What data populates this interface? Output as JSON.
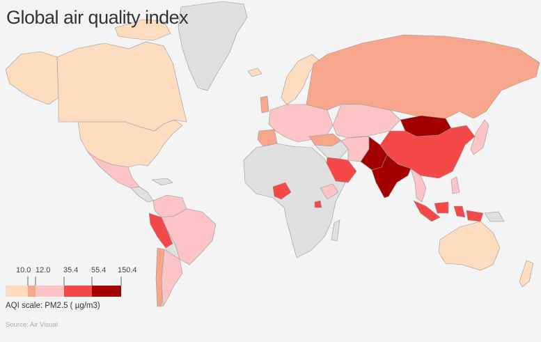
{
  "title": "Global air quality index",
  "legend": {
    "scale_label": "AQI scale: PM2.5 ( µg/m3)",
    "ticks": [
      "10.0",
      "12.0",
      "35.4",
      "55.4",
      "150.4"
    ],
    "bins": [
      {
        "color": "#fddcc0"
      },
      {
        "color": "#f7a58b"
      },
      {
        "color": "#fcc4c4"
      },
      {
        "color": "#f54848"
      },
      {
        "color": "#a30000"
      }
    ]
  },
  "source": "Source: Air Visual",
  "colors": {
    "no_data": "#e0e0e0",
    "ocean": "#f4f4f4",
    "border": "#888888"
  },
  "countries": [
    {
      "name": "Canada",
      "bin": 0
    },
    {
      "name": "United States",
      "bin": 0
    },
    {
      "name": "Mexico",
      "bin": 2
    },
    {
      "name": "Peru",
      "bin": 3
    },
    {
      "name": "Brazil",
      "bin": 2
    },
    {
      "name": "Chile",
      "bin": 2
    },
    {
      "name": "Argentina",
      "bin": 2
    },
    {
      "name": "Russia",
      "bin": 1
    },
    {
      "name": "China",
      "bin": 3
    },
    {
      "name": "Mongolia",
      "bin": 4
    },
    {
      "name": "India",
      "bin": 4
    },
    {
      "name": "Pakistan",
      "bin": 4
    },
    {
      "name": "Saudi Arabia",
      "bin": 3
    },
    {
      "name": "Nigeria",
      "bin": 3
    },
    {
      "name": "Ethiopia",
      "bin": 2
    },
    {
      "name": "Australia",
      "bin": 0
    },
    {
      "name": "Indonesia",
      "bin": 3
    },
    {
      "name": "Kazakhstan",
      "bin": 2
    },
    {
      "name": "Iran",
      "bin": 2
    }
  ]
}
